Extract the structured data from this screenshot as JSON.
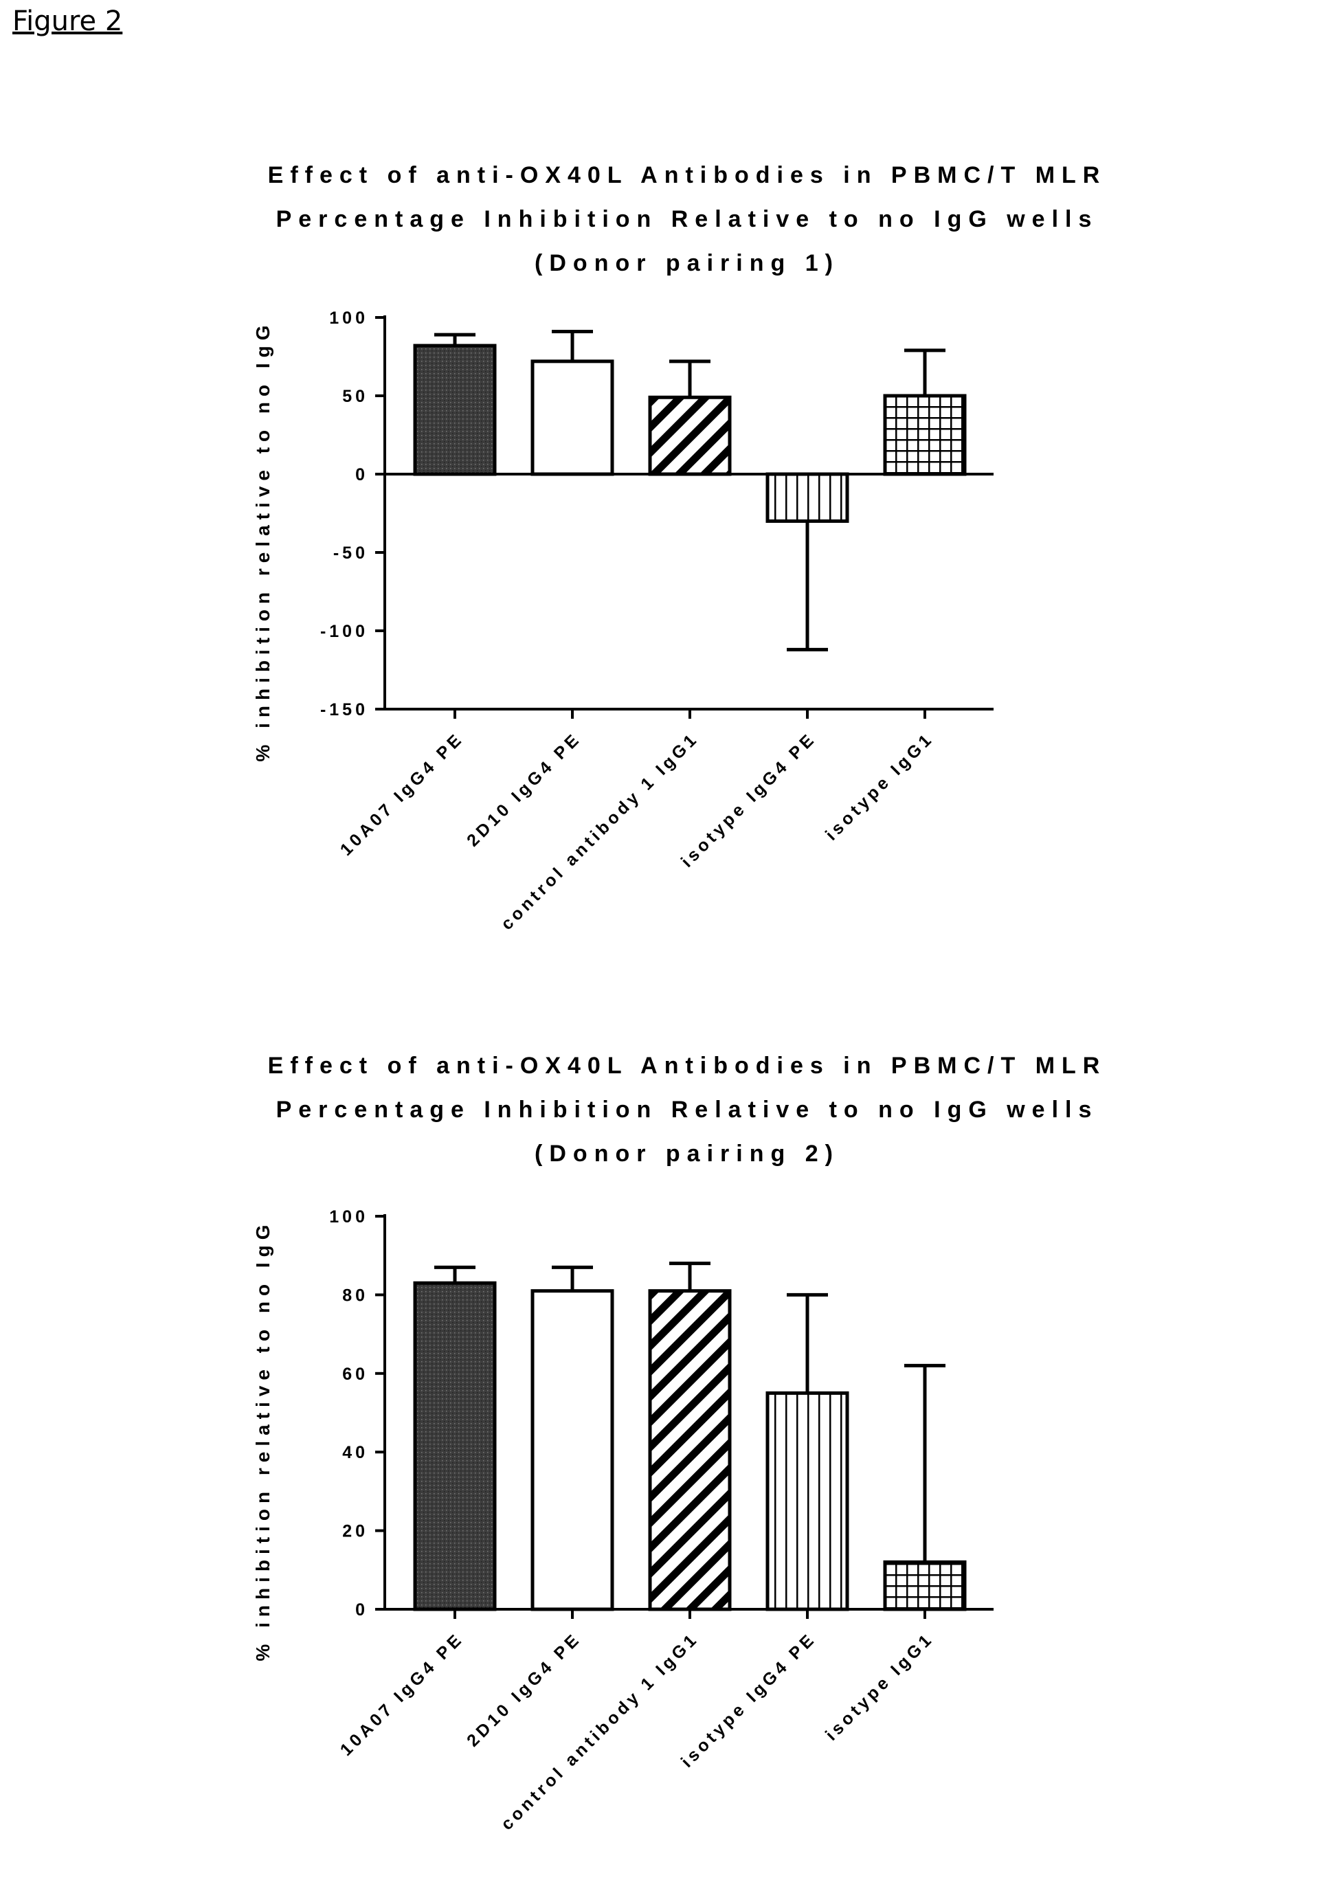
{
  "figure_label": "Figure 2",
  "chart_data": [
    {
      "type": "bar",
      "title_lines": [
        "Effect of anti-OX40L Antibodies in PBMC/T MLR",
        "Percentage Inhibition Relative to no IgG wells",
        "(Donor pairing 1)"
      ],
      "ylabel": "% inhibition relative to no IgG",
      "xlabel": "",
      "categories": [
        "10A07 IgG4 PE",
        "2D10 IgG4 PE",
        "control antibody 1 IgG1",
        "isotype IgG4 PE",
        "isotype IgG1"
      ],
      "values": [
        82,
        72,
        49,
        -30,
        50
      ],
      "error_upper": [
        89,
        91,
        72,
        -30,
        79
      ],
      "error_lower": [
        82,
        72,
        49,
        -112,
        50
      ],
      "patterns": [
        "dark-stipple",
        "white",
        "diagonal-hatch",
        "vertical-lines",
        "grid"
      ],
      "ylim": [
        -150,
        100
      ],
      "yticks": [
        -150,
        -100,
        -50,
        0,
        50,
        100
      ],
      "ytick_labels": [
        "-150",
        "-100",
        "-50",
        "0",
        "50",
        "100"
      ],
      "grid": false,
      "legend": "none"
    },
    {
      "type": "bar",
      "title_lines": [
        "Effect of anti-OX40L Antibodies in PBMC/T MLR",
        "Percentage Inhibition Relative to no IgG wells",
        "(Donor pairing 2)"
      ],
      "ylabel": "% inhibition relative to no IgG",
      "xlabel": "",
      "categories": [
        "10A07 IgG4 PE",
        "2D10 IgG4 PE",
        "control antibody 1 IgG1",
        "isotype IgG4 PE",
        "isotype IgG1"
      ],
      "values": [
        83,
        81,
        81,
        55,
        12
      ],
      "error_upper": [
        87,
        87,
        88,
        80,
        62
      ],
      "error_lower": [
        83,
        81,
        81,
        55,
        12
      ],
      "patterns": [
        "dark-stipple",
        "white",
        "diagonal-hatch",
        "vertical-lines",
        "grid"
      ],
      "ylim": [
        0,
        100
      ],
      "yticks": [
        0,
        20,
        40,
        60,
        80,
        100
      ],
      "ytick_labels": [
        "0",
        "20",
        "40",
        "60",
        "80",
        "100"
      ],
      "grid": false,
      "legend": "none"
    }
  ]
}
